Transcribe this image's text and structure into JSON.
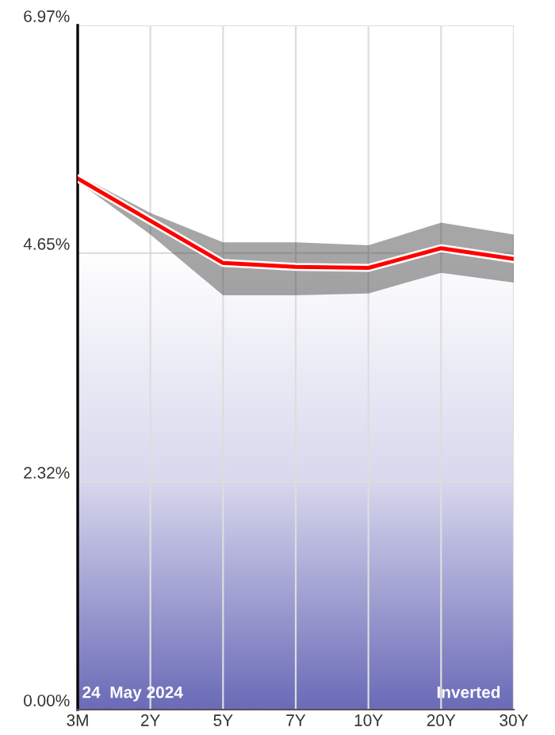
{
  "chart_data": {
    "type": "line",
    "categories": [
      "3M",
      "2Y",
      "5Y",
      "7Y",
      "10Y",
      "20Y",
      "30Y"
    ],
    "series": [
      {
        "color": "#ff0000",
        "values": [
          5.41,
          4.98,
          4.55,
          4.51,
          4.5,
          4.7,
          4.59
        ],
        "lower": [
          5.38,
          4.84,
          4.22,
          4.22,
          4.24,
          4.45,
          4.35
        ],
        "upper": [
          5.45,
          5.06,
          4.76,
          4.76,
          4.73,
          4.96,
          4.84
        ]
      }
    ],
    "ylim": [
      0,
      6.97
    ],
    "yticks": [
      {
        "value": 0,
        "label": "0.00%"
      },
      {
        "value": 2.32,
        "label": "2.32%"
      },
      {
        "value": 4.65,
        "label": "4.65%"
      },
      {
        "value": 6.97,
        "label": "6.97%"
      }
    ],
    "grid": true,
    "marker": "none",
    "line_style": "solid",
    "annotations": [
      "24  May 2024",
      "Inverted"
    ]
  }
}
